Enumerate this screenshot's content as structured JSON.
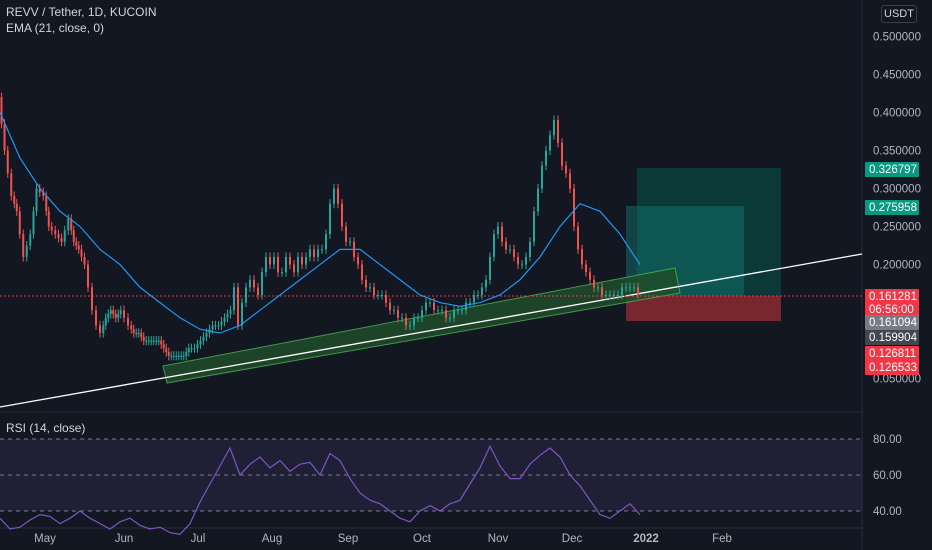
{
  "header": {
    "symbol_title": "REVV / Tether, 1D, KUCOIN",
    "ema_label": "EMA (21, close, 0)",
    "rsi_label": "RSI (14, close)",
    "currency": "USDT"
  },
  "chart_data": {
    "type": "candlestick",
    "x_ticks": [
      "May",
      "Jun",
      "Jul",
      "Aug",
      "Sep",
      "Oct",
      "Nov",
      "Dec",
      "2022",
      "Feb"
    ],
    "price_ticks": [
      "0.500000",
      "0.450000",
      "0.400000",
      "0.350000",
      "0.300000",
      "0.250000",
      "0.200000",
      "0.050000"
    ],
    "rsi_ticks": [
      "80.00",
      "60.00",
      "40.00"
    ],
    "price_tags": [
      {
        "value": "0.326797",
        "color": "#089981"
      },
      {
        "value": "0.275958",
        "color": "#089981"
      },
      {
        "value": "0.161281",
        "color": "#f23645"
      },
      {
        "value": "06:56:00",
        "color": "#f23645"
      },
      {
        "value": "0.161094",
        "color": "#787b86"
      },
      {
        "value": "0.159904",
        "color": "#434651"
      },
      {
        "value": "0.126811",
        "color": "#f23645"
      },
      {
        "value": "0.126533",
        "color": "#f23645"
      }
    ],
    "colors": {
      "up": "#26a69a",
      "down": "#ef5350",
      "ema": "#2196f3",
      "rsi": "#7e57c2",
      "channel": "#4caf50",
      "trendline": "#ffffff"
    },
    "price_path": [
      [
        0,
        0.42
      ],
      [
        6,
        0.35
      ],
      [
        13,
        0.29
      ],
      [
        18,
        0.27
      ],
      [
        25,
        0.21
      ],
      [
        32,
        0.24
      ],
      [
        38,
        0.3
      ],
      [
        45,
        0.29
      ],
      [
        50,
        0.25
      ],
      [
        57,
        0.24
      ],
      [
        63,
        0.23
      ],
      [
        70,
        0.26
      ],
      [
        75,
        0.23
      ],
      [
        80,
        0.22
      ],
      [
        86,
        0.2
      ],
      [
        90,
        0.17
      ],
      [
        94,
        0.14
      ],
      [
        98,
        0.12
      ],
      [
        102,
        0.11
      ],
      [
        107,
        0.13
      ],
      [
        112,
        0.14
      ],
      [
        117,
        0.13
      ],
      [
        122,
        0.14
      ],
      [
        126,
        0.13
      ],
      [
        130,
        0.12
      ],
      [
        135,
        0.11
      ],
      [
        140,
        0.11
      ],
      [
        145,
        0.1
      ],
      [
        150,
        0.1
      ],
      [
        155,
        0.1
      ],
      [
        160,
        0.1
      ],
      [
        165,
        0.09
      ],
      [
        170,
        0.08
      ],
      [
        175,
        0.08
      ],
      [
        180,
        0.08
      ],
      [
        185,
        0.08
      ],
      [
        190,
        0.09
      ],
      [
        196,
        0.09
      ],
      [
        202,
        0.1
      ],
      [
        208,
        0.11
      ],
      [
        214,
        0.12
      ],
      [
        220,
        0.12
      ],
      [
        226,
        0.13
      ],
      [
        232,
        0.14
      ],
      [
        236,
        0.17
      ],
      [
        240,
        0.12
      ],
      [
        244,
        0.15
      ],
      [
        248,
        0.17
      ],
      [
        252,
        0.18
      ],
      [
        256,
        0.17
      ],
      [
        260,
        0.16
      ],
      [
        264,
        0.19
      ],
      [
        268,
        0.21
      ],
      [
        272,
        0.2
      ],
      [
        276,
        0.21
      ],
      [
        280,
        0.19
      ],
      [
        284,
        0.19
      ],
      [
        288,
        0.21
      ],
      [
        292,
        0.2
      ],
      [
        296,
        0.19
      ],
      [
        300,
        0.21
      ],
      [
        304,
        0.2
      ],
      [
        308,
        0.21
      ],
      [
        312,
        0.22
      ],
      [
        316,
        0.21
      ],
      [
        320,
        0.22
      ],
      [
        324,
        0.22
      ],
      [
        328,
        0.24
      ],
      [
        332,
        0.28
      ],
      [
        336,
        0.3
      ],
      [
        340,
        0.28
      ],
      [
        344,
        0.25
      ],
      [
        348,
        0.23
      ],
      [
        352,
        0.23
      ],
      [
        356,
        0.21
      ],
      [
        360,
        0.2
      ],
      [
        364,
        0.18
      ],
      [
        368,
        0.17
      ],
      [
        372,
        0.17
      ],
      [
        376,
        0.16
      ],
      [
        380,
        0.16
      ],
      [
        384,
        0.16
      ],
      [
        388,
        0.15
      ],
      [
        392,
        0.14
      ],
      [
        396,
        0.14
      ],
      [
        400,
        0.13
      ],
      [
        404,
        0.13
      ],
      [
        408,
        0.12
      ],
      [
        412,
        0.12
      ],
      [
        416,
        0.13
      ],
      [
        420,
        0.13
      ],
      [
        424,
        0.14
      ],
      [
        428,
        0.15
      ],
      [
        432,
        0.15
      ],
      [
        436,
        0.14
      ],
      [
        440,
        0.14
      ],
      [
        444,
        0.14
      ],
      [
        448,
        0.13
      ],
      [
        452,
        0.13
      ],
      [
        456,
        0.14
      ],
      [
        460,
        0.14
      ],
      [
        464,
        0.14
      ],
      [
        468,
        0.15
      ],
      [
        472,
        0.15
      ],
      [
        476,
        0.16
      ],
      [
        480,
        0.16
      ],
      [
        484,
        0.17
      ],
      [
        488,
        0.18
      ],
      [
        492,
        0.21
      ],
      [
        496,
        0.24
      ],
      [
        500,
        0.25
      ],
      [
        504,
        0.23
      ],
      [
        508,
        0.22
      ],
      [
        512,
        0.22
      ],
      [
        516,
        0.21
      ],
      [
        520,
        0.2
      ],
      [
        524,
        0.2
      ],
      [
        528,
        0.21
      ],
      [
        532,
        0.23
      ],
      [
        536,
        0.27
      ],
      [
        540,
        0.3
      ],
      [
        544,
        0.33
      ],
      [
        548,
        0.35
      ],
      [
        552,
        0.37
      ],
      [
        556,
        0.39
      ],
      [
        560,
        0.36
      ],
      [
        564,
        0.33
      ],
      [
        568,
        0.32
      ],
      [
        572,
        0.3
      ],
      [
        576,
        0.25
      ],
      [
        580,
        0.22
      ],
      [
        584,
        0.2
      ],
      [
        588,
        0.19
      ],
      [
        592,
        0.18
      ],
      [
        596,
        0.17
      ],
      [
        600,
        0.17
      ],
      [
        604,
        0.16
      ],
      [
        608,
        0.16
      ],
      [
        612,
        0.16
      ],
      [
        616,
        0.16
      ],
      [
        620,
        0.16
      ],
      [
        624,
        0.17
      ],
      [
        628,
        0.17
      ],
      [
        632,
        0.17
      ],
      [
        636,
        0.17
      ],
      [
        640,
        0.161281
      ]
    ],
    "rsi_path": [
      [
        0,
        36
      ],
      [
        10,
        30
      ],
      [
        20,
        31
      ],
      [
        30,
        35
      ],
      [
        40,
        38
      ],
      [
        50,
        37
      ],
      [
        60,
        33
      ],
      [
        70,
        36
      ],
      [
        80,
        40
      ],
      [
        90,
        36
      ],
      [
        100,
        33
      ],
      [
        110,
        30
      ],
      [
        120,
        34
      ],
      [
        130,
        36
      ],
      [
        140,
        32
      ],
      [
        150,
        30
      ],
      [
        160,
        31
      ],
      [
        170,
        28
      ],
      [
        180,
        27
      ],
      [
        190,
        33
      ],
      [
        200,
        45
      ],
      [
        210,
        55
      ],
      [
        220,
        65
      ],
      [
        230,
        75
      ],
      [
        240,
        60
      ],
      [
        250,
        66
      ],
      [
        260,
        70
      ],
      [
        270,
        64
      ],
      [
        280,
        68
      ],
      [
        290,
        62
      ],
      [
        300,
        66
      ],
      [
        310,
        67
      ],
      [
        320,
        60
      ],
      [
        330,
        72
      ],
      [
        340,
        68
      ],
      [
        350,
        58
      ],
      [
        360,
        50
      ],
      [
        370,
        46
      ],
      [
        380,
        44
      ],
      [
        390,
        40
      ],
      [
        400,
        36
      ],
      [
        410,
        34
      ],
      [
        420,
        40
      ],
      [
        430,
        43
      ],
      [
        440,
        40
      ],
      [
        450,
        44
      ],
      [
        460,
        46
      ],
      [
        470,
        55
      ],
      [
        480,
        64
      ],
      [
        490,
        76
      ],
      [
        500,
        65
      ],
      [
        510,
        58
      ],
      [
        520,
        58
      ],
      [
        530,
        66
      ],
      [
        540,
        71
      ],
      [
        550,
        75
      ],
      [
        560,
        70
      ],
      [
        570,
        60
      ],
      [
        580,
        54
      ],
      [
        590,
        46
      ],
      [
        600,
        38
      ],
      [
        610,
        36
      ],
      [
        620,
        40
      ],
      [
        630,
        44
      ],
      [
        640,
        38
      ]
    ],
    "ema_path": [
      [
        0,
        0.4
      ],
      [
        20,
        0.34
      ],
      [
        40,
        0.3
      ],
      [
        60,
        0.27
      ],
      [
        80,
        0.25
      ],
      [
        100,
        0.22
      ],
      [
        120,
        0.2
      ],
      [
        140,
        0.17
      ],
      [
        160,
        0.15
      ],
      [
        180,
        0.13
      ],
      [
        200,
        0.115
      ],
      [
        220,
        0.11
      ],
      [
        240,
        0.12
      ],
      [
        260,
        0.14
      ],
      [
        280,
        0.16
      ],
      [
        300,
        0.18
      ],
      [
        320,
        0.2
      ],
      [
        340,
        0.22
      ],
      [
        360,
        0.22
      ],
      [
        380,
        0.2
      ],
      [
        400,
        0.18
      ],
      [
        420,
        0.16
      ],
      [
        440,
        0.15
      ],
      [
        460,
        0.145
      ],
      [
        480,
        0.15
      ],
      [
        500,
        0.16
      ],
      [
        520,
        0.18
      ],
      [
        540,
        0.21
      ],
      [
        560,
        0.25
      ],
      [
        580,
        0.28
      ],
      [
        600,
        0.27
      ],
      [
        620,
        0.24
      ],
      [
        640,
        0.2
      ]
    ]
  }
}
